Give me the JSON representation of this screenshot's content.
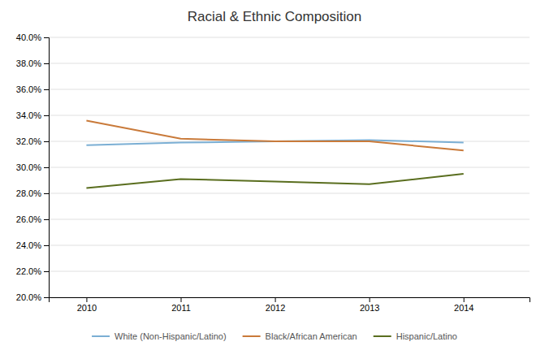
{
  "chart_data": {
    "type": "line",
    "title": "Racial & Ethnic Composition",
    "x": [
      2010,
      2011,
      2012,
      2013,
      2014
    ],
    "series": [
      {
        "name": "White (Non-Hispanic/Latino)",
        "color": "#7BAFD4",
        "values": [
          0.317,
          0.319,
          0.32,
          0.321,
          0.319
        ]
      },
      {
        "name": "Black/African American",
        "color": "#C97A3A",
        "values": [
          0.336,
          0.322,
          0.32,
          0.32,
          0.313
        ]
      },
      {
        "name": "Hispanic/Latino",
        "color": "#5A6E1F",
        "values": [
          0.284,
          0.291,
          0.289,
          0.287,
          0.295
        ]
      }
    ],
    "xlim": [
      2009.6,
      2014.7
    ],
    "xticks": [
      2010,
      2011,
      2012,
      2013,
      2014
    ],
    "ylim": [
      0.2,
      0.4
    ],
    "yticks": [
      {
        "value": 0.2,
        "label": "20.0%"
      },
      {
        "value": 0.22,
        "label": "22.0%"
      },
      {
        "value": 0.24,
        "label": "24.0%"
      },
      {
        "value": 0.26,
        "label": "26.0%"
      },
      {
        "value": 0.28,
        "label": "28.0%"
      },
      {
        "value": 0.3,
        "label": "30.0%"
      },
      {
        "value": 0.32,
        "label": "32.0%"
      },
      {
        "value": 0.34,
        "label": "34.0%"
      },
      {
        "value": 0.36,
        "label": "36.0%"
      },
      {
        "value": 0.38,
        "label": "38.0%"
      },
      {
        "value": 0.4,
        "label": "40.0%"
      }
    ],
    "grid": true,
    "legend": "bottom"
  }
}
